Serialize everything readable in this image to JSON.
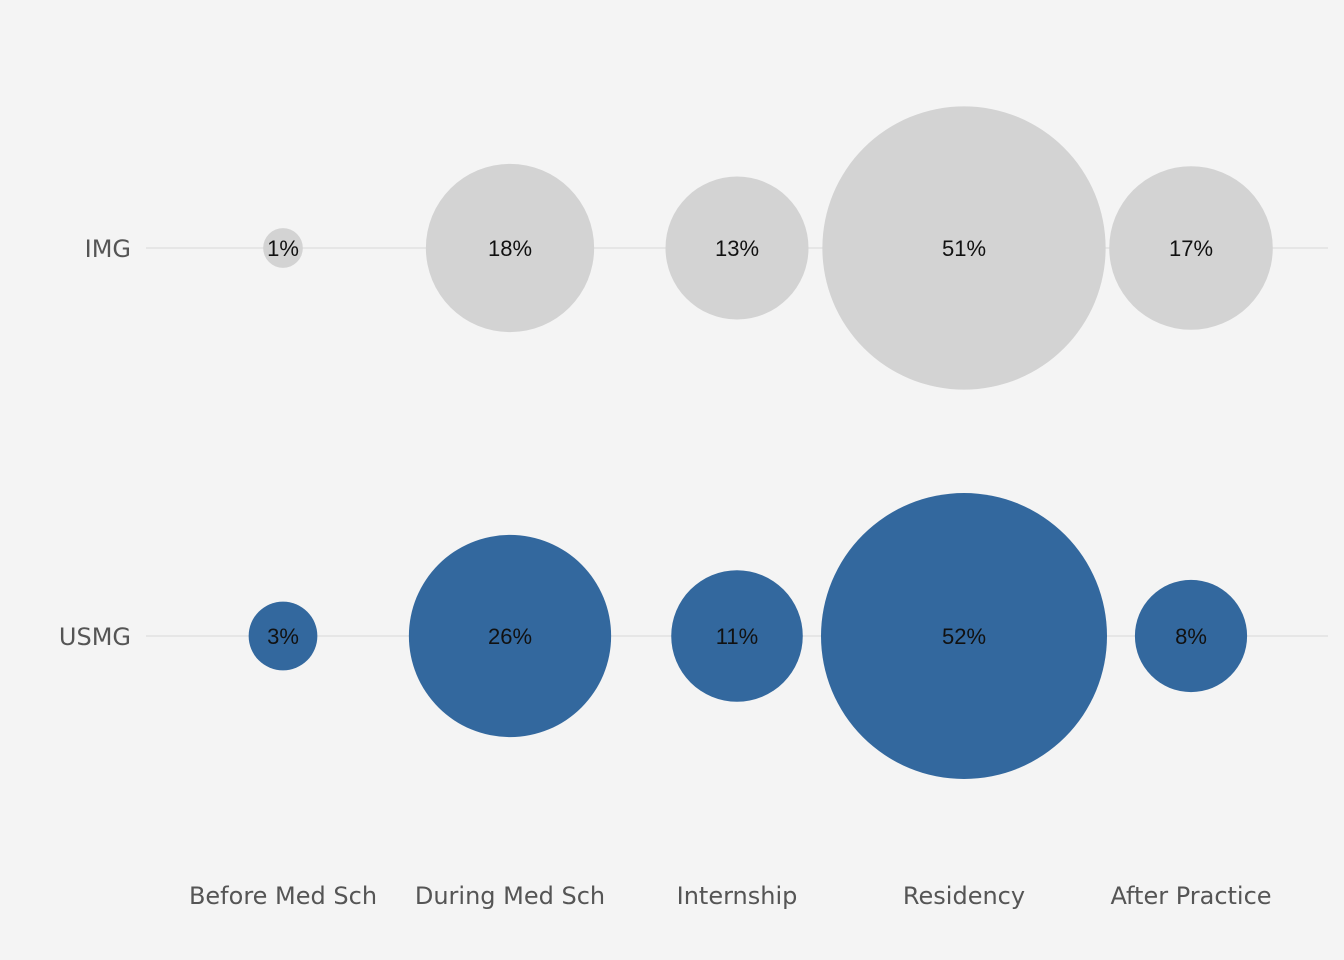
{
  "chart_data": {
    "type": "scatter",
    "encoding": "bubble-size-by-percent",
    "title": "",
    "xlabel": "",
    "ylabel": "",
    "categories": [
      "Before Med Sch",
      "During Med Sch",
      "Internship",
      "Residency",
      "After Practice"
    ],
    "series": [
      {
        "name": "IMG",
        "color": "#d3d3d3",
        "values": [
          1,
          18,
          13,
          51,
          17
        ],
        "labels": [
          "1%",
          "18%",
          "13%",
          "51%",
          "17%"
        ]
      },
      {
        "name": "USMG",
        "color": "#33689e",
        "values": [
          3,
          26,
          11,
          52,
          8
        ],
        "labels": [
          "3%",
          "26%",
          "11%",
          "52%",
          "8%"
        ]
      }
    ],
    "grid": true,
    "legend": "none"
  }
}
